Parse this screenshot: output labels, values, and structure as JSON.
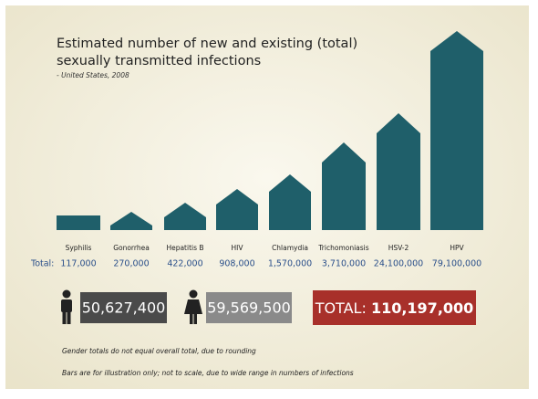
{
  "header": {
    "title_line1": "Estimated number of new and existing (total)",
    "title_line2": "sexually transmitted infections",
    "subtitle": "- United States, 2008"
  },
  "diseases": [
    {
      "name": "Syphilis",
      "total": "117,000"
    },
    {
      "name": "Gonorrhea",
      "total": "270,000"
    },
    {
      "name": "Hepatitis B",
      "total": "422,000"
    },
    {
      "name": "HIV",
      "total": "908,000"
    },
    {
      "name": "Chlamydia",
      "total": "1,570,000"
    },
    {
      "name": "Trichomoniasis",
      "total": "3,710,000"
    },
    {
      "name": "HSV-2",
      "total": "24,100,000"
    },
    {
      "name": "HPV",
      "total": "79,100,000"
    }
  ],
  "total_label": "Total:",
  "gender": {
    "male": "50,627,400",
    "female": "59,569,500"
  },
  "overall": {
    "label": "TOTAL:",
    "value": "110,197,000"
  },
  "notes": [
    "Gender totals do not equal overall total, due to rounding",
    "Bars are for illustration only; not to scale, due to wide range in numbers of infections"
  ]
}
